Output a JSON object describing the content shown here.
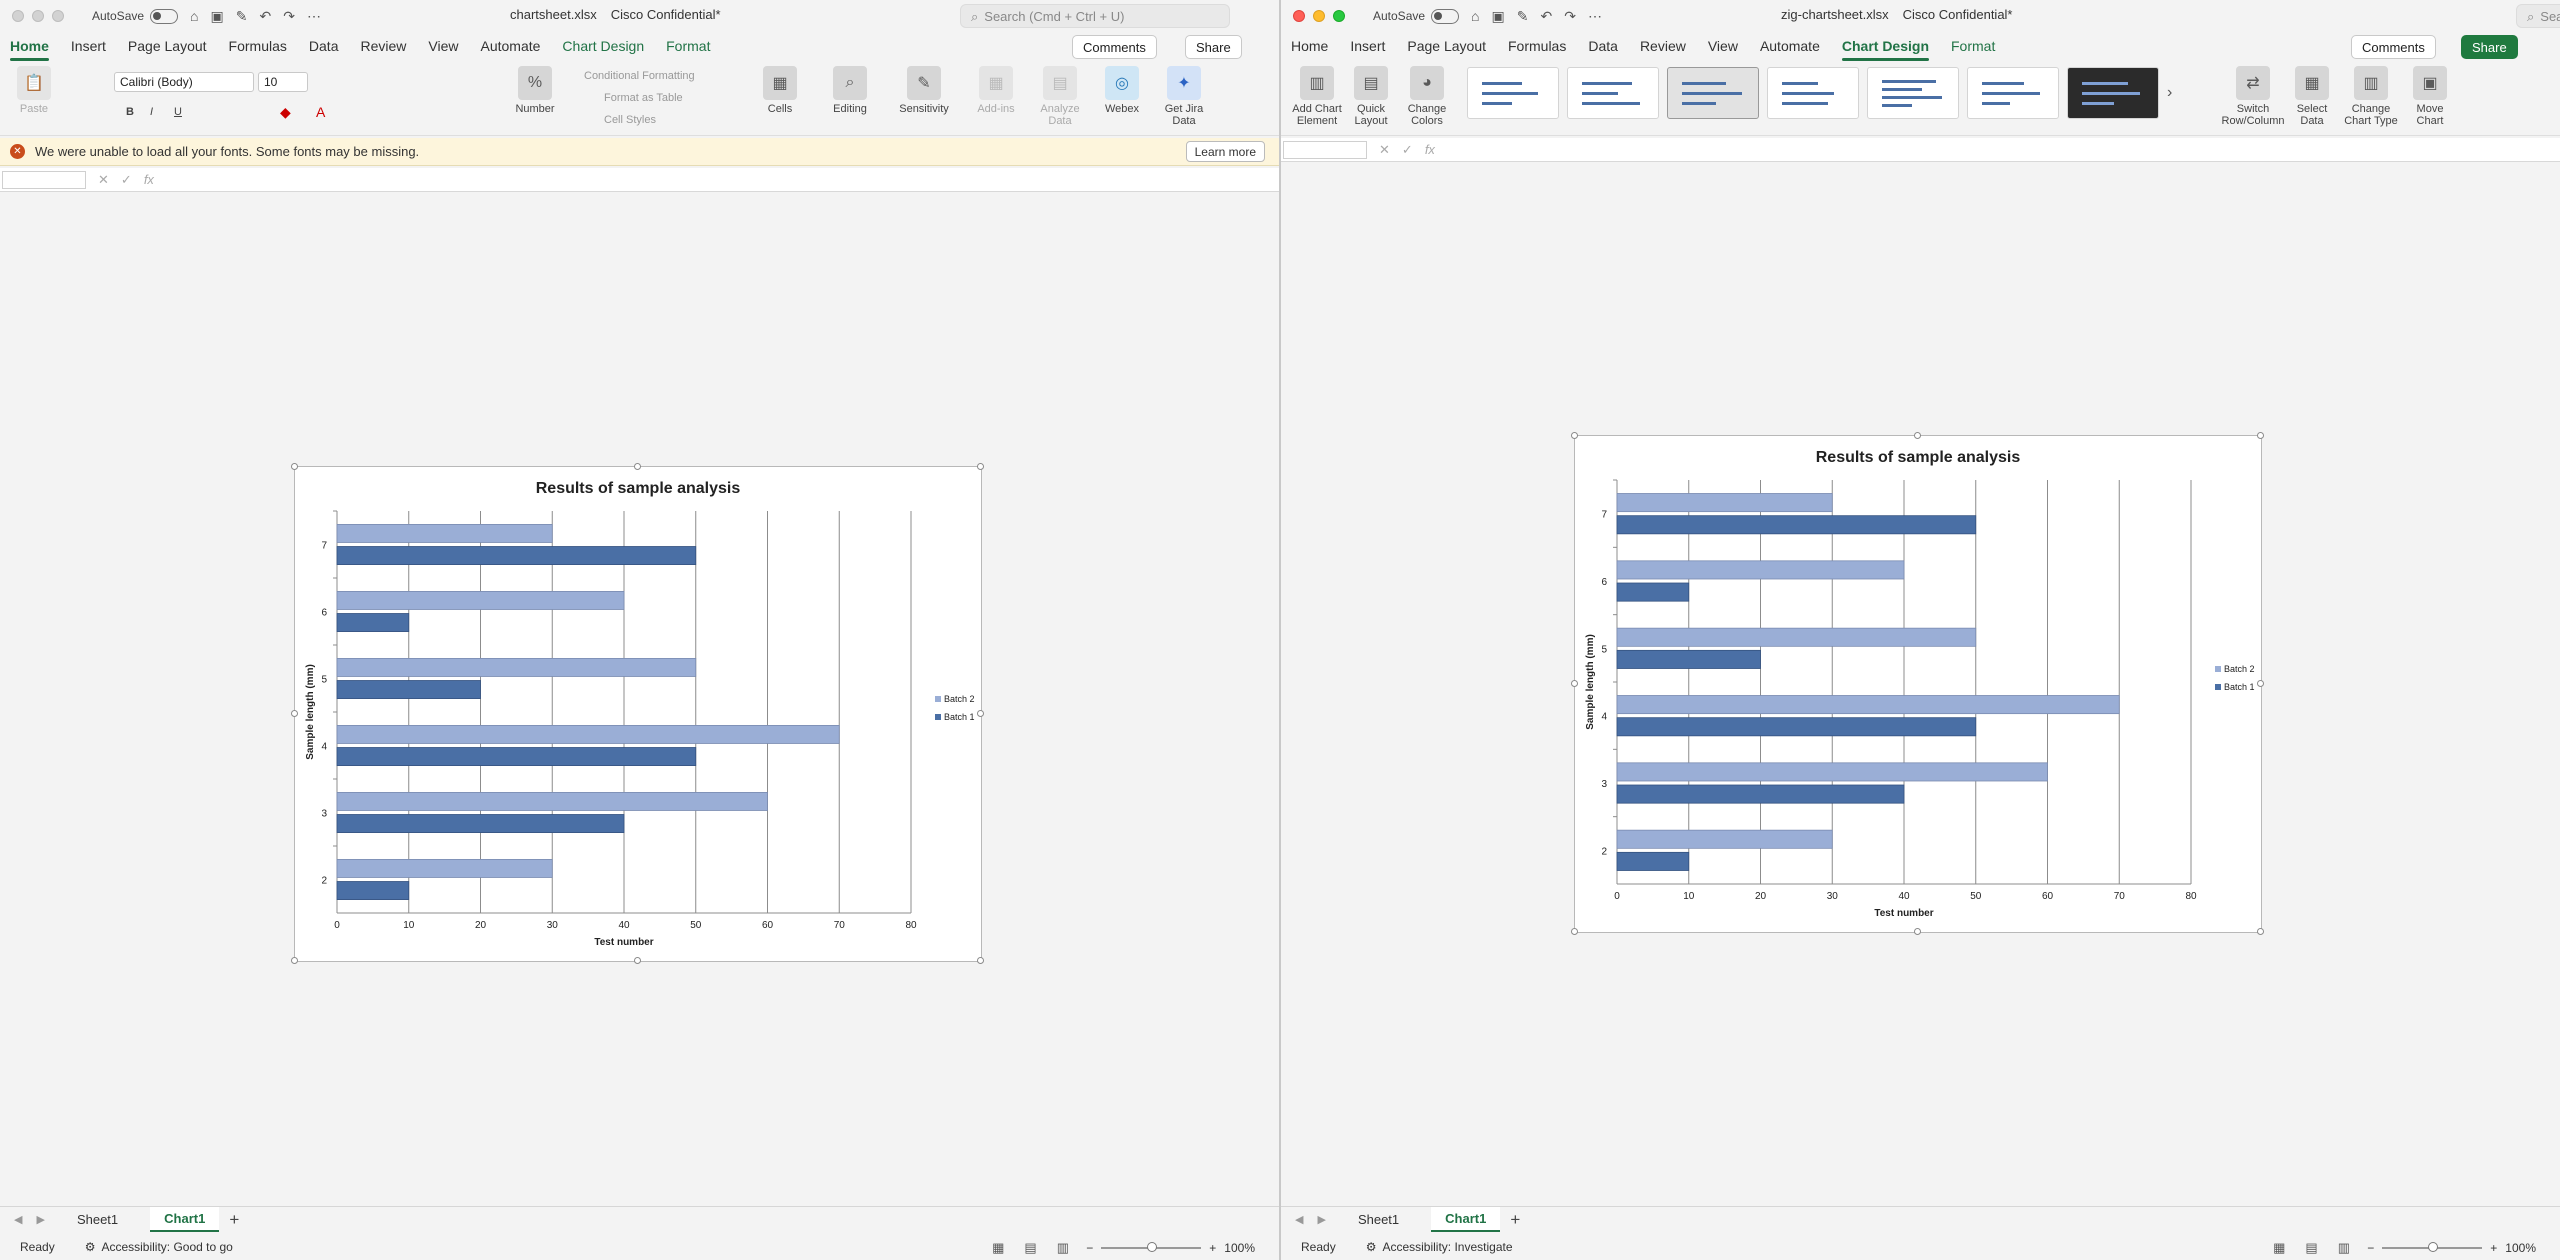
{
  "windows": [
    {
      "id": "left",
      "autosave_label": "AutoSave",
      "file_name": "chartsheet.xlsx",
      "sensitivity": "Cisco Confidential*",
      "search_placeholder": "Search (Cmd + Ctrl + U)",
      "tabs": [
        "Home",
        "Insert",
        "Page Layout",
        "Formulas",
        "Data",
        "Review",
        "View",
        "Automate",
        "Chart Design",
        "Format"
      ],
      "active_tab": "Home",
      "comments_label": "Comments",
      "share_label": "Share",
      "ribbon": {
        "paste": "Paste",
        "font_name": "Calibri (Body)",
        "font_size": "10",
        "number": "Number",
        "conditional_formatting": "Conditional Formatting",
        "format_as_table": "Format as Table",
        "cell_styles": "Cell Styles",
        "cells": "Cells",
        "editing": "Editing",
        "sensitivity": "Sensitivity",
        "add_ins": "Add-ins",
        "analyze_data": "Analyze Data",
        "webex": "Webex",
        "get_jira_data": "Get Jira Data",
        "bold": "B",
        "italic": "I",
        "underline": "U"
      },
      "notice": {
        "text": "We were unable to load all your fonts.  Some fonts may be missing.",
        "learn_more": "Learn more"
      },
      "fx": "fx",
      "sheets": [
        "Sheet1",
        "Chart1"
      ],
      "active_sheet": "Chart1",
      "status": "Ready",
      "accessibility": "Accessibility: Good to go",
      "zoom": "100%"
    },
    {
      "id": "right",
      "autosave_label": "AutoSave",
      "file_name": "zig-chartsheet.xlsx",
      "sensitivity": "Cisco Confidential*",
      "search_placeholder": "Search (Cmd + Ctrl + U)",
      "tabs": [
        "Home",
        "Insert",
        "Page Layout",
        "Formulas",
        "Data",
        "Review",
        "View",
        "Automate",
        "Chart Design",
        "Format"
      ],
      "active_tab": "Chart Design",
      "comments_label": "Comments",
      "share_label": "Share",
      "ribbon": {
        "add_chart_element": "Add Chart Element",
        "quick_layout": "Quick Layout",
        "change_colors": "Change Colors",
        "switch_row_column": "Switch Row/Column",
        "select_data": "Select Data",
        "change_chart_type": "Change Chart Type",
        "move_chart": "Move Chart"
      },
      "fx": "fx",
      "sheets": [
        "Sheet1",
        "Chart1"
      ],
      "active_sheet": "Chart1",
      "status": "Ready",
      "accessibility": "Accessibility: Investigate",
      "zoom": "100%"
    }
  ],
  "chart_data": [
    {
      "type": "bar",
      "orientation": "horizontal",
      "title": "Results of sample analysis",
      "xlabel": "Test number",
      "ylabel": "Sample length (mm)",
      "categories": [
        "2",
        "3",
        "4",
        "5",
        "6",
        "7"
      ],
      "series": [
        {
          "name": "Batch 1",
          "values": [
            10,
            40,
            50,
            20,
            10,
            50
          ],
          "color": "#4a6fa5"
        },
        {
          "name": "Batch 2",
          "values": [
            30,
            60,
            70,
            50,
            40,
            30
          ],
          "color": "#9aaed6"
        }
      ],
      "xlim": [
        0,
        80
      ],
      "x_ticks": [
        0,
        10,
        20,
        30,
        40,
        50,
        60,
        70,
        80
      ],
      "grid": true,
      "legend_position": "right"
    },
    {
      "type": "bar",
      "orientation": "horizontal",
      "title": "Results of sample analysis",
      "xlabel": "Test number",
      "ylabel": "Sample length (mm)",
      "categories": [
        "2",
        "3",
        "4",
        "5",
        "6",
        "7"
      ],
      "series": [
        {
          "name": "Batch 1",
          "values": [
            10,
            40,
            50,
            20,
            10,
            50
          ],
          "color": "#4a6fa5"
        },
        {
          "name": "Batch 2",
          "values": [
            30,
            60,
            70,
            50,
            40,
            30
          ],
          "color": "#9aaed6"
        }
      ],
      "xlim": [
        0,
        80
      ],
      "x_ticks": [
        0,
        10,
        20,
        30,
        40,
        50,
        60,
        70,
        80
      ],
      "grid": true,
      "legend_position": "right"
    }
  ]
}
